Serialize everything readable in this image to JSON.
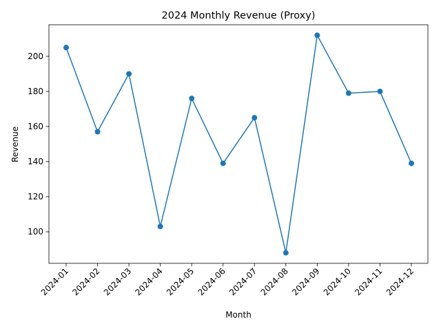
{
  "chart_data": {
    "type": "line",
    "title": "2024 Monthly Revenue (Proxy)",
    "xlabel": "Month",
    "ylabel": "Revenue",
    "categories": [
      "2024-01",
      "2024-02",
      "2024-03",
      "2024-04",
      "2024-05",
      "2024-06",
      "2024-07",
      "2024-08",
      "2024-09",
      "2024-10",
      "2024-11",
      "2024-12"
    ],
    "series": [
      {
        "values": [
          205,
          157,
          190,
          103,
          176,
          139,
          165,
          88,
          212,
          179,
          180,
          139
        ]
      }
    ],
    "ylim": [
      82,
      218
    ],
    "y_ticks": [
      100,
      120,
      140,
      160,
      180,
      200
    ],
    "x_tick_rotation_deg": 45,
    "grid": false,
    "legend": "none",
    "line_color": "#1f77b4",
    "marker": "circle"
  }
}
